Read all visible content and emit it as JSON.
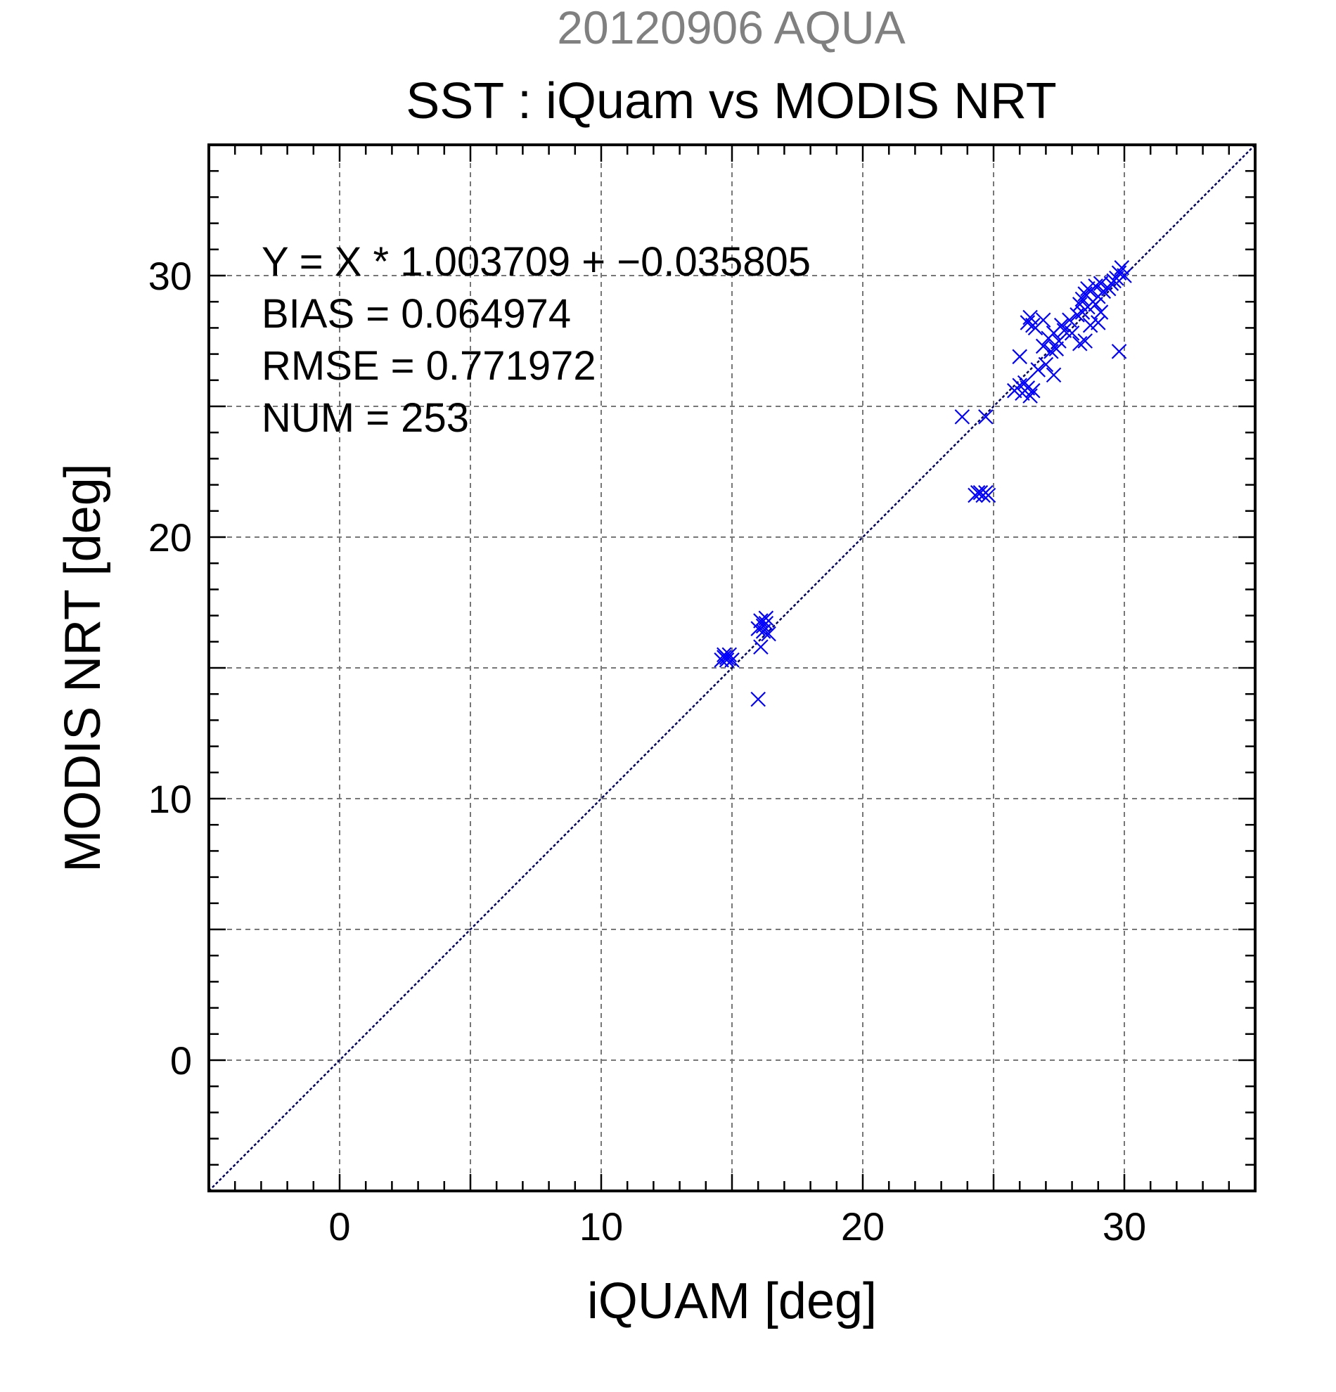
{
  "chart_data": {
    "type": "scatter",
    "suptitle": "20120906 AQUA",
    "title": "SST : iQuam vs MODIS NRT",
    "xlabel": "iQUAM [deg]",
    "ylabel": "MODIS NRT [deg]",
    "xlim": [
      -5,
      35
    ],
    "ylim": [
      -5,
      35
    ],
    "xticks": [
      0,
      10,
      20,
      30
    ],
    "yticks": [
      0,
      10,
      20,
      30
    ],
    "grid": true,
    "grid_step": 5,
    "minor_tick_step": 1,
    "marker": "x",
    "marker_color": "#0000ff",
    "reference_line": {
      "slope": 1,
      "intercept": 0,
      "color": "#000060",
      "style": "dashed"
    },
    "stats": [
      "Y = X * 1.003709 + −0.035805",
      "BIAS = 0.064974",
      "RMSE = 0.771972",
      "NUM = 253"
    ],
    "points": [
      [
        14.7,
        15.4
      ],
      [
        14.8,
        15.3
      ],
      [
        14.9,
        15.5
      ],
      [
        14.6,
        15.3
      ],
      [
        14.8,
        15.4
      ],
      [
        15.0,
        15.3
      ],
      [
        14.7,
        15.5
      ],
      [
        16.1,
        16.8
      ],
      [
        16.2,
        16.6
      ],
      [
        16.3,
        16.7
      ],
      [
        16.0,
        16.5
      ],
      [
        16.2,
        16.4
      ],
      [
        16.4,
        16.3
      ],
      [
        16.3,
        16.9
      ],
      [
        16.1,
        15.8
      ],
      [
        16.0,
        13.8
      ],
      [
        23.8,
        24.6
      ],
      [
        24.7,
        24.6
      ],
      [
        24.3,
        21.6
      ],
      [
        24.5,
        21.7
      ],
      [
        24.6,
        21.6
      ],
      [
        24.7,
        21.7
      ],
      [
        24.4,
        21.7
      ],
      [
        24.8,
        21.6
      ],
      [
        25.8,
        25.6
      ],
      [
        26.0,
        25.8
      ],
      [
        26.1,
        25.5
      ],
      [
        26.3,
        25.7
      ],
      [
        26.2,
        25.9
      ],
      [
        26.4,
        25.4
      ],
      [
        26.5,
        25.6
      ],
      [
        26.0,
        26.9
      ],
      [
        26.7,
        26.4
      ],
      [
        27.0,
        26.6
      ],
      [
        27.3,
        26.2
      ],
      [
        27.2,
        27.1
      ],
      [
        26.9,
        27.3
      ],
      [
        27.4,
        27.2
      ],
      [
        26.3,
        28.2
      ],
      [
        26.5,
        28.1
      ],
      [
        26.9,
        28.3
      ],
      [
        26.6,
        28.0
      ],
      [
        26.4,
        28.4
      ],
      [
        27.1,
        27.6
      ],
      [
        27.3,
        27.8
      ],
      [
        27.5,
        27.5
      ],
      [
        27.7,
        27.9
      ],
      [
        27.6,
        28.1
      ],
      [
        27.9,
        28.3
      ],
      [
        28.0,
        27.8
      ],
      [
        28.2,
        28.5
      ],
      [
        28.3,
        28.9
      ],
      [
        28.4,
        29.1
      ],
      [
        28.5,
        29.3
      ],
      [
        28.6,
        28.8
      ],
      [
        28.7,
        29.4
      ],
      [
        28.8,
        29.0
      ],
      [
        28.9,
        29.6
      ],
      [
        29.0,
        29.2
      ],
      [
        28.4,
        28.6
      ],
      [
        28.6,
        29.5
      ],
      [
        28.9,
        28.9
      ],
      [
        29.1,
        29.7
      ],
      [
        29.2,
        29.4
      ],
      [
        28.5,
        27.5
      ],
      [
        28.7,
        28.1
      ],
      [
        29.0,
        28.2
      ],
      [
        29.1,
        28.6
      ],
      [
        28.3,
        27.4
      ],
      [
        29.4,
        29.5
      ],
      [
        29.6,
        29.8
      ],
      [
        29.8,
        30.1
      ],
      [
        30.0,
        30.0
      ],
      [
        29.9,
        30.3
      ],
      [
        29.7,
        29.9
      ],
      [
        29.5,
        29.7
      ],
      [
        29.8,
        27.1
      ]
    ]
  }
}
